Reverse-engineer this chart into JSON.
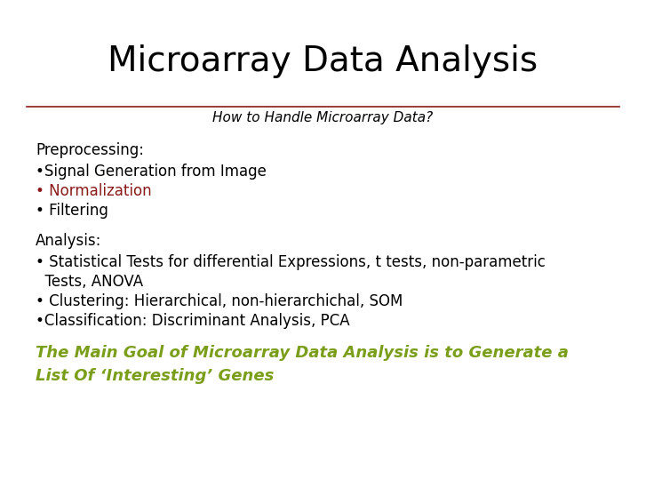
{
  "title": "Microarray Data Analysis",
  "subtitle": "How to Handle Microarray Data?",
  "title_color": "#000000",
  "subtitle_color": "#000000",
  "line_color": "#8B1a1a",
  "background_color": "#ffffff",
  "title_fontsize": 28,
  "subtitle_fontsize": 11,
  "body_fontsize": 12,
  "footer_fontsize": 13,
  "preprocessing_header": "Preprocessing:",
  "preprocessing_items": [
    {
      "text": "•Signal Generation from Image",
      "color": "#000000"
    },
    {
      "text": "• Normalization",
      "color": "#8B1a1a"
    },
    {
      "text": "• Filtering",
      "color": "#000000"
    }
  ],
  "analysis_header": "Analysis:",
  "analysis_items": [
    {
      "text": "• Statistical Tests for differential Expressions, t tests, non-parametric",
      "color": "#000000"
    },
    {
      "text": "  Tests, ANOVA",
      "color": "#000000"
    },
    {
      "text": "• Clustering: Hierarchical, non-hierarchichal, SOM",
      "color": "#000000"
    },
    {
      "text": "•Classification: Discriminant Analysis, PCA",
      "color": "#000000"
    }
  ],
  "footer_line1": "The Main Goal of Microarray Data Analysis is to Generate a",
  "footer_line2": "List Of ‘Interesting’ Genes",
  "footer_color": "#7b9e1a"
}
